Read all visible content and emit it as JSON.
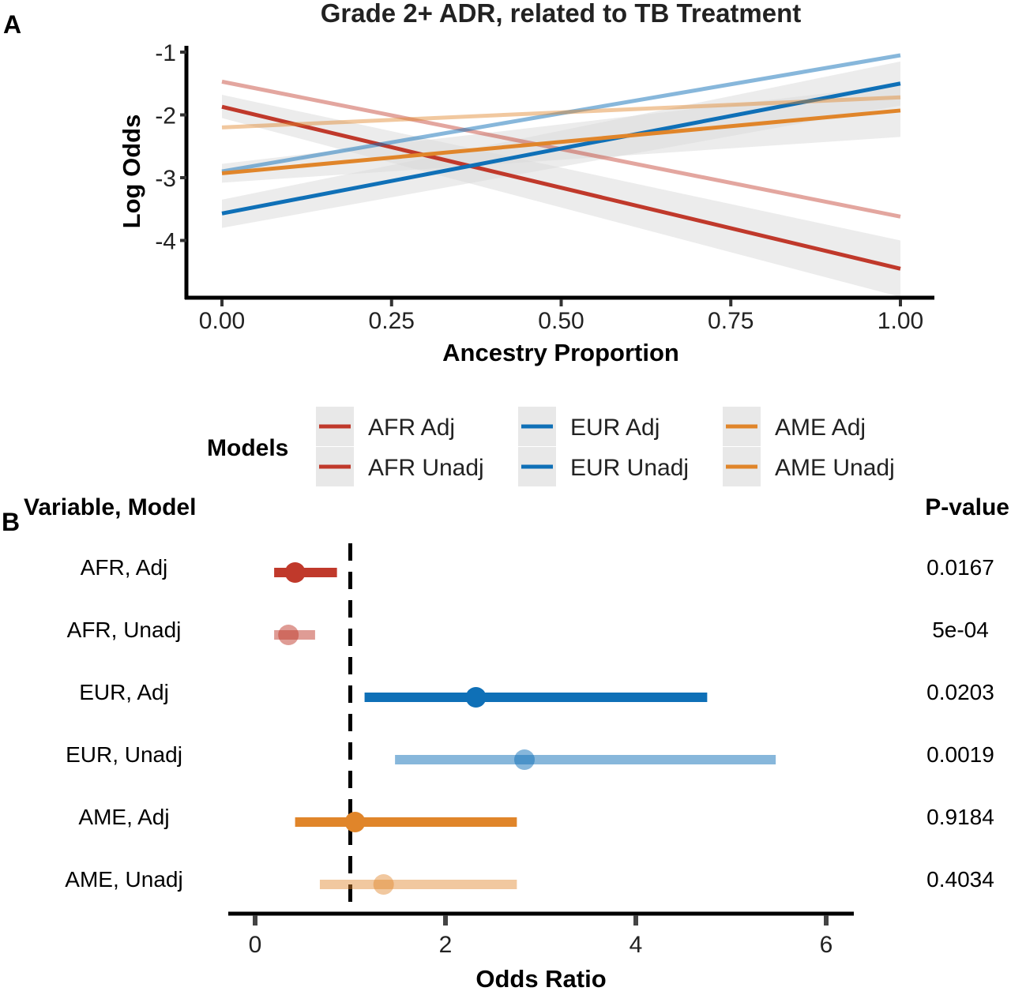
{
  "panel_a": {
    "letter": "A",
    "title": "Grade 2+ ADR, related to TB Treatment",
    "xlabel": "Ancestry Proportion",
    "ylabel": "Log Odds",
    "xticks": [
      "0.00",
      "0.25",
      "0.50",
      "0.75",
      "1.00"
    ],
    "yticks": [
      "-1",
      "-2",
      "-3",
      "-4"
    ]
  },
  "legend": {
    "title": "Models",
    "items": [
      "AFR Adj",
      "AFR Unadj",
      "EUR Adj",
      "EUR Unadj",
      "AME Adj",
      "AME Unadj"
    ]
  },
  "panel_b": {
    "letter": "B",
    "left_header": "Variable, Model",
    "right_header": "P-value",
    "xlabel": "Odds Ratio",
    "xticks": [
      "0",
      "2",
      "4",
      "6"
    ],
    "rows": [
      "AFR, Adj",
      "AFR, Unadj",
      "EUR, Adj",
      "EUR, Unadj",
      "AME, Adj",
      "AME, Unadj"
    ],
    "pvalues": [
      "0.0167",
      "5e-04",
      "0.0203",
      "0.0019",
      "0.9184",
      "0.4034"
    ]
  },
  "colors": {
    "AFR": "#c0392b",
    "EUR": "#0f70b7",
    "AME": "#e0852a",
    "ci_band": "#d9d9d9",
    "reference_line": "#000000"
  },
  "chart_data": [
    {
      "type": "line",
      "title": "Grade 2+ ADR, related to TB Treatment",
      "xlabel": "Ancestry Proportion",
      "ylabel": "Log Odds",
      "xlim": [
        0,
        1
      ],
      "ylim": [
        -4.9,
        -0.9
      ],
      "x": [
        0,
        1
      ],
      "series": [
        {
          "name": "AFR Adj",
          "color": "#c0392b",
          "opacity": 1.0,
          "values": [
            -1.87,
            -4.45
          ],
          "ci_lower": [
            -2.05,
            -4.9
          ],
          "ci_upper": [
            -1.68,
            -4.0
          ]
        },
        {
          "name": "AFR Unadj",
          "color": "#c0392b",
          "opacity": 0.45,
          "values": [
            -1.47,
            -3.62
          ]
        },
        {
          "name": "EUR Adj",
          "color": "#0f70b7",
          "opacity": 1.0,
          "values": [
            -3.57,
            -1.5
          ],
          "ci_lower": [
            -3.8,
            -1.85
          ],
          "ci_upper": [
            -3.35,
            -1.15
          ]
        },
        {
          "name": "EUR Unadj",
          "color": "#0f70b7",
          "opacity": 0.5,
          "values": [
            -2.9,
            -1.05
          ]
        },
        {
          "name": "AME Adj",
          "color": "#e0852a",
          "opacity": 1.0,
          "values": [
            -2.93,
            -1.93
          ],
          "ci_lower": [
            -3.08,
            -2.35
          ],
          "ci_upper": [
            -2.78,
            -1.52
          ]
        },
        {
          "name": "AME Unadj",
          "color": "#e0852a",
          "opacity": 0.45,
          "values": [
            -2.2,
            -1.72
          ]
        }
      ]
    },
    {
      "type": "scatter",
      "subtype": "forest",
      "xlabel": "Odds Ratio",
      "xlim": [
        -0.3,
        6.4
      ],
      "reference_line": 1,
      "rows": [
        {
          "label": "AFR, Adj",
          "or": 0.42,
          "lower": 0.2,
          "upper": 0.86,
          "p": "0.0167",
          "color": "#c0392b",
          "opacity": 1.0
        },
        {
          "label": "AFR, Unadj",
          "or": 0.35,
          "lower": 0.2,
          "upper": 0.63,
          "p": "5e-04",
          "color": "#c0392b",
          "opacity": 0.5
        },
        {
          "label": "EUR, Adj",
          "or": 2.32,
          "lower": 1.15,
          "upper": 4.75,
          "p": "0.0203",
          "color": "#0f70b7",
          "opacity": 1.0
        },
        {
          "label": "EUR, Unadj",
          "or": 2.83,
          "lower": 1.47,
          "upper": 5.47,
          "p": "0.0019",
          "color": "#0f70b7",
          "opacity": 0.5
        },
        {
          "label": "AME, Adj",
          "or": 1.05,
          "lower": 0.42,
          "upper": 2.75,
          "p": "0.9184",
          "color": "#e0852a",
          "opacity": 1.0
        },
        {
          "label": "AME, Unadj",
          "or": 1.35,
          "lower": 0.68,
          "upper": 2.75,
          "p": "0.4034",
          "color": "#e0852a",
          "opacity": 0.45
        }
      ]
    }
  ]
}
